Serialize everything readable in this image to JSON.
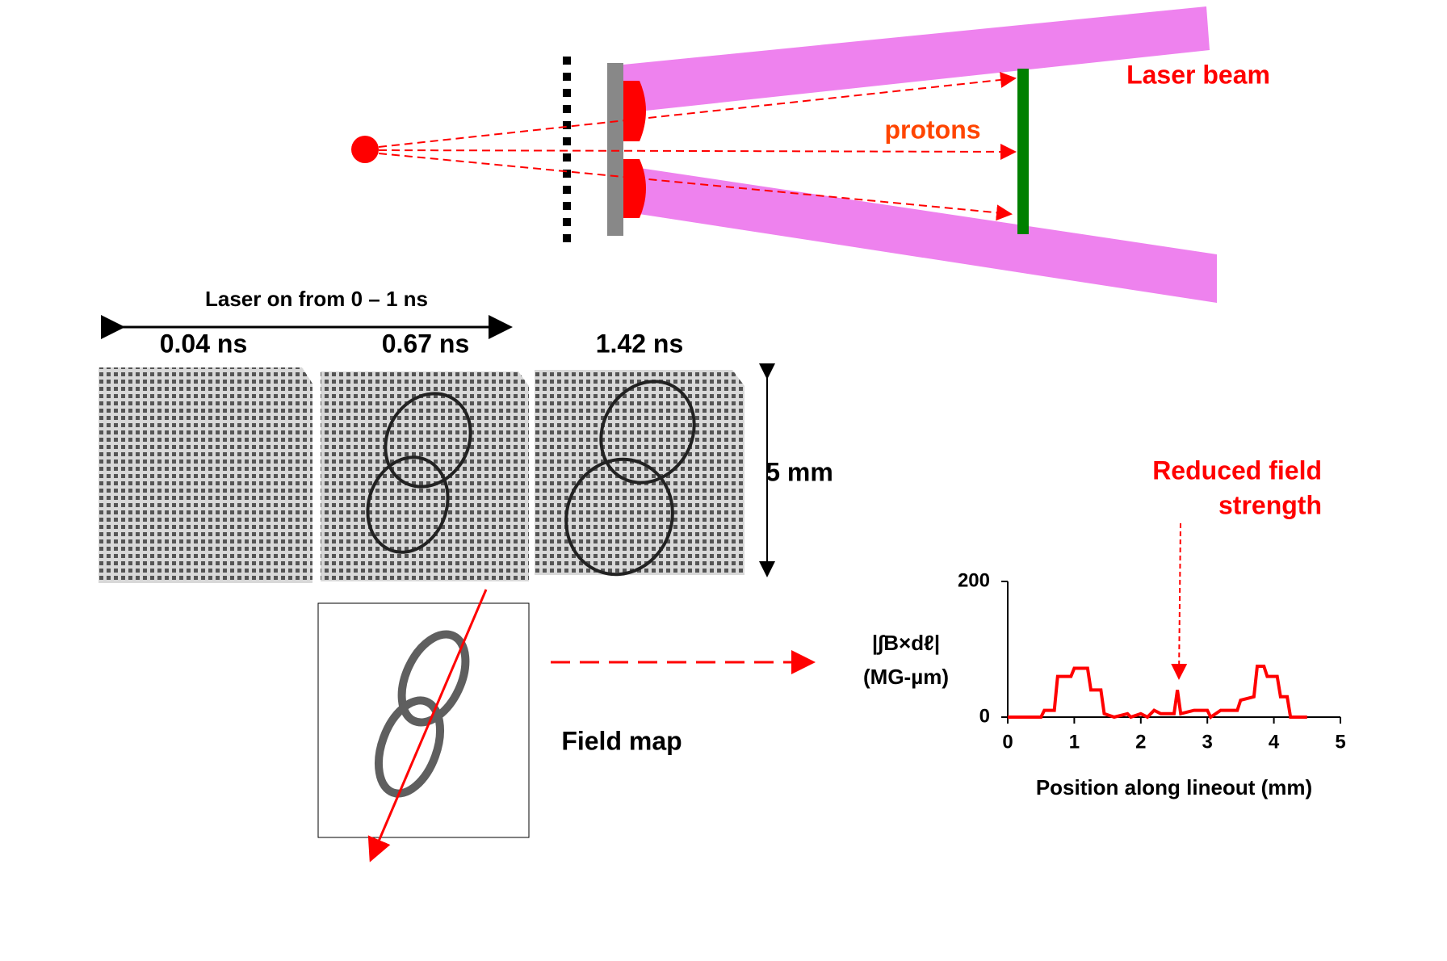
{
  "diagram": {
    "laser_beam": "Laser beam",
    "protons": "protons",
    "laser_on": "Laser on from 0 – 1 ns",
    "times": [
      "0.04 ns",
      "0.67 ns",
      "1.42 ns"
    ],
    "scale": "5 mm",
    "field_map": "Field map"
  },
  "chart_data": {
    "type": "line",
    "xlabel": "Position along lineout (mm)",
    "ylabel_lines": [
      "|∫B×dℓ|",
      "(MG-µm)"
    ],
    "annotation_lines": [
      "Reduced field",
      "strength"
    ],
    "xlim": [
      0,
      5
    ],
    "ylim": [
      0,
      200
    ],
    "xticks": [
      0,
      1,
      2,
      3,
      4,
      5
    ],
    "yticks": [
      0,
      200
    ],
    "series": [
      {
        "color": "#ff0000",
        "x": [
          0,
          0.5,
          0.55,
          0.7,
          0.75,
          0.95,
          1.0,
          1.2,
          1.25,
          1.4,
          1.45,
          1.6,
          1.8,
          1.85,
          2.0,
          2.1,
          2.2,
          2.3,
          2.5,
          2.55,
          2.6,
          2.8,
          3.0,
          3.05,
          3.2,
          3.45,
          3.5,
          3.7,
          3.75,
          3.85,
          3.9,
          4.05,
          4.1,
          4.2,
          4.25,
          4.5
        ],
        "values": [
          0,
          0,
          10,
          10,
          60,
          60,
          72,
          72,
          40,
          40,
          5,
          0,
          5,
          0,
          5,
          0,
          10,
          5,
          5,
          40,
          5,
          10,
          10,
          0,
          10,
          10,
          25,
          30,
          75,
          75,
          60,
          60,
          30,
          30,
          0,
          0
        ]
      }
    ]
  }
}
